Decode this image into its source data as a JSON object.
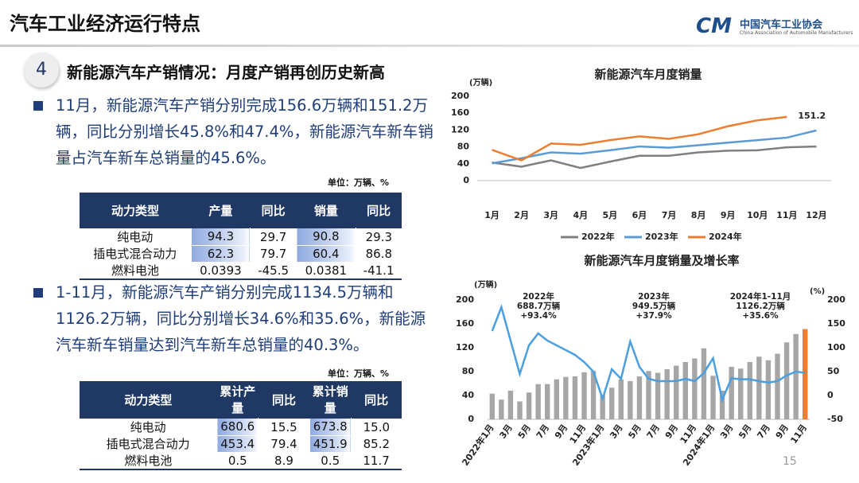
{
  "header": {
    "title": "汽车工业经济运行特点",
    "org": "中国汽车工业协会",
    "org_en": "China Association of Automobile Manufacturers"
  },
  "section": {
    "number": "4",
    "title": "新能源汽车产销情况：月度产销再创历史新高"
  },
  "bullet1": "11月，新能源汽车产销分别完成156.6万辆和151.2万辆，同比分别增长45.8%和47.4%，新能源汽车新车销量占汽车新车总销量的45.6%。",
  "table1": {
    "unit": "单位：万辆、%",
    "header": [
      "动力类型",
      "产量",
      "同比",
      "销量",
      "同比"
    ],
    "rows": [
      [
        "纯电动",
        "94.3",
        "29.7",
        "90.8",
        "29.3"
      ],
      [
        "插电式混合动力",
        "62.3",
        "79.7",
        "60.4",
        "86.8"
      ],
      [
        "燃料电池",
        "0.0393",
        "-45.5",
        "0.0381",
        "-41.1"
      ]
    ]
  },
  "bullet2": "1-11月，新能源汽车产销分别完成1134.5万辆和1126.2万辆，同比分别增长34.6%和35.6%，新能源汽车新车销量达到汽车新车总销量的40.3%。",
  "table2": {
    "unit": "单位：万辆、%",
    "header": [
      "动力类型",
      "累计产量",
      "同比",
      "累计销量",
      "同比"
    ],
    "rows": [
      [
        "纯电动",
        "680.6",
        "15.5",
        "673.8",
        "15.0"
      ],
      [
        "插电式混合动力",
        "453.4",
        "79.4",
        "451.9",
        "85.2"
      ],
      [
        "燃料电池",
        "0.5",
        "8.9",
        "0.5",
        "11.7"
      ]
    ]
  },
  "page_number": "15",
  "chart_data": [
    {
      "type": "line",
      "title": "新能源汽车月度销量",
      "y_unit": "(万辆)",
      "categories": [
        "1月",
        "2月",
        "3月",
        "4月",
        "5月",
        "6月",
        "7月",
        "8月",
        "9月",
        "10月",
        "11月",
        "12月"
      ],
      "series": [
        {
          "name": "2022年",
          "color": "#7f7f7f",
          "values": [
            43,
            33,
            48,
            30,
            45,
            59,
            59,
            67,
            71,
            72,
            79,
            81
          ]
        },
        {
          "name": "2023年",
          "color": "#5b9bd5",
          "values": [
            41,
            53,
            67,
            64,
            72,
            81,
            78,
            84,
            90,
            96,
            102,
            119
          ]
        },
        {
          "name": "2024年",
          "color": "#ed7d31",
          "values": [
            73,
            48,
            88,
            85,
            96,
            105,
            99,
            110,
            129,
            143,
            151.2,
            null
          ]
        }
      ],
      "annotation": "151.2",
      "ylim": [
        0,
        200
      ],
      "yticks": [
        0,
        40,
        80,
        120,
        160,
        200
      ],
      "grid": false,
      "legend": "bottom"
    },
    {
      "type": "bar",
      "title": "新能源汽车月度销量及增长率",
      "y_unit": "(万辆)",
      "y2_unit": "(%)",
      "categories": [
        "2022年1月",
        null,
        "3月",
        null,
        "5月",
        null,
        "7月",
        null,
        "9月",
        null,
        "11月",
        null,
        "2023年1月",
        null,
        "3月",
        null,
        "5月",
        null,
        "7月",
        null,
        "9月",
        null,
        "11月",
        null,
        "2024年1月",
        null,
        "3月",
        null,
        "5月",
        null,
        "7月",
        null,
        "9月",
        null,
        "11月"
      ],
      "series": [
        {
          "type": "bar",
          "color": "#a6a6a6",
          "colors": [
            "#a6a6a6",
            "#a6a6a6",
            "#a6a6a6",
            "#a6a6a6",
            "#a6a6a6",
            "#a6a6a6",
            "#a6a6a6",
            "#a6a6a6",
            "#a6a6a6",
            "#a6a6a6",
            "#a6a6a6",
            "#a6a6a6",
            "#a6a6a6",
            "#a6a6a6",
            "#a6a6a6",
            "#a6a6a6",
            "#a6a6a6",
            "#a6a6a6",
            "#a6a6a6",
            "#a6a6a6",
            "#a6a6a6",
            "#a6a6a6",
            "#a6a6a6",
            "#a6a6a6",
            "#a6a6a6",
            "#a6a6a6",
            "#a6a6a6",
            "#a6a6a6",
            "#a6a6a6",
            "#a6a6a6",
            "#a6a6a6",
            "#a6a6a6",
            "#a6a6a6",
            "#a6a6a6",
            "#ed7d31"
          ],
          "values": [
            43,
            33,
            48,
            30,
            45,
            59,
            59,
            67,
            71,
            72,
            79,
            81,
            41,
            53,
            67,
            64,
            72,
            81,
            78,
            84,
            90,
            96,
            102,
            119,
            73,
            48,
            88,
            85,
            96,
            105,
            99,
            110,
            129,
            143,
            151.2
          ]
        },
        {
          "type": "line",
          "axis": "y2",
          "color": "#4a9fe0",
          "values": [
            135,
            185,
            115,
            45,
            105,
            130,
            115,
            105,
            95,
            85,
            70,
            50,
            -7,
            55,
            35,
            113,
            60,
            35,
            30,
            30,
            30,
            35,
            30,
            47,
            78,
            -9,
            36,
            34,
            34,
            30,
            27,
            30,
            42,
            50,
            47.4
          ]
        }
      ],
      "annotations": [
        [
          "2022年",
          "688.7万辆",
          "+93.4%"
        ],
        [
          "2023年",
          "949.5万辆",
          "+37.9%"
        ],
        [
          "2024年1-11月",
          "1126.2万辆",
          "+35.6%"
        ]
      ],
      "ylim": [
        0,
        200
      ],
      "yticks": [
        0,
        40,
        80,
        120,
        160,
        200
      ],
      "y2lim": [
        -50,
        200
      ],
      "y2ticks": [
        -50,
        0,
        50,
        100,
        150,
        200
      ],
      "grid": false
    }
  ]
}
